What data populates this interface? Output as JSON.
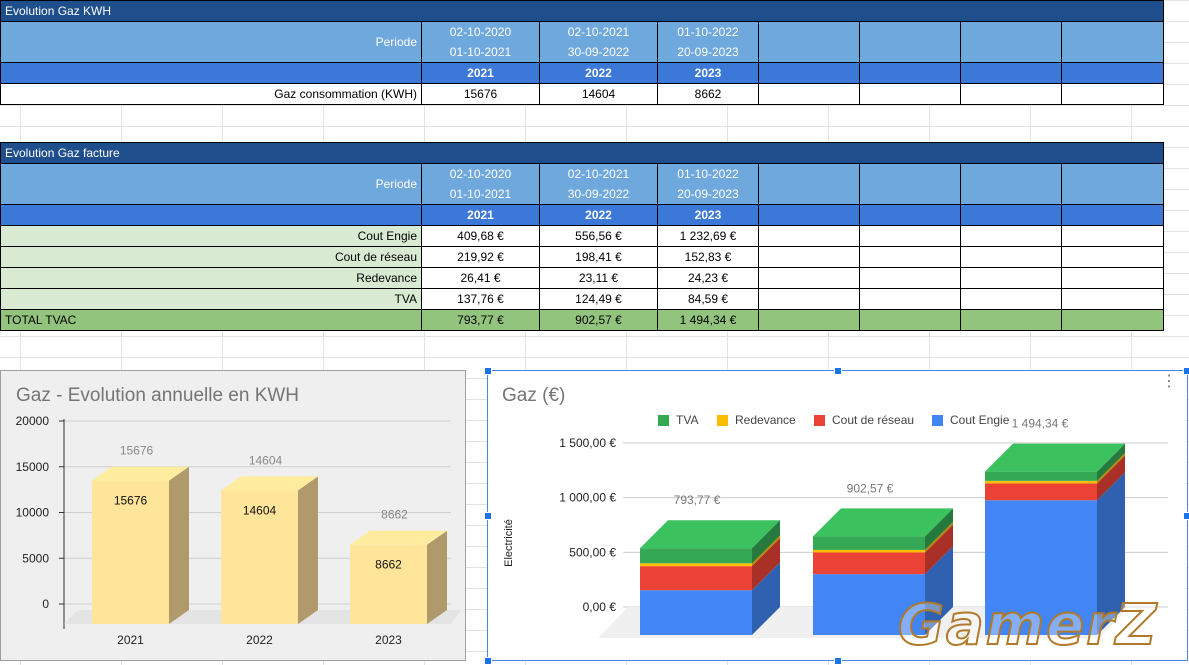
{
  "table1": {
    "title": "Evolution Gaz KWH",
    "period_label": "Periode",
    "periods": [
      {
        "start": "02-10-2020",
        "end": "01-10-2021"
      },
      {
        "start": "02-10-2021",
        "end": "30-09-2022"
      },
      {
        "start": "01-10-2022",
        "end": "20-09-2023"
      }
    ],
    "years": [
      "2021",
      "2022",
      "2023"
    ],
    "row_label": "Gaz consommation (KWH)",
    "values": [
      "15676",
      "14604",
      "8662"
    ]
  },
  "table2": {
    "title": "Evolution Gaz facture",
    "period_label": "Periode",
    "periods": [
      {
        "start": "02-10-2020",
        "end": "01-10-2021"
      },
      {
        "start": "02-10-2021",
        "end": "30-09-2022"
      },
      {
        "start": "01-10-2022",
        "end": "20-09-2023"
      }
    ],
    "years": [
      "2021",
      "2022",
      "2023"
    ],
    "rows": [
      {
        "label": "Cout  Engie",
        "values": [
          "409,68 €",
          "556,56 €",
          "1 232,69 €"
        ]
      },
      {
        "label": "Cout de réseau",
        "values": [
          "219,92 €",
          "198,41 €",
          "152,83 €"
        ]
      },
      {
        "label": "Redevance",
        "values": [
          "26,41 €",
          "23,11 €",
          "24,23 €"
        ]
      },
      {
        "label": "TVA",
        "values": [
          "137,76 €",
          "124,49 €",
          "84,59 €"
        ]
      }
    ],
    "total": {
      "label": "TOTAL TVAC",
      "values": [
        "793,77 €",
        "902,57 €",
        "1 494,34 €"
      ]
    }
  },
  "chart_data": [
    {
      "type": "bar",
      "title": "Gaz - Evolution annuelle en KWH",
      "categories": [
        "2021",
        "2022",
        "2023"
      ],
      "values": [
        15676,
        14604,
        8662
      ],
      "value_labels": [
        "15676",
        "14604",
        "8662"
      ],
      "yticks": [
        "20000",
        "15000",
        "10000",
        "5000",
        "0"
      ],
      "ylim": [
        0,
        20000
      ],
      "color": "#ffe599",
      "three_d": true,
      "grid": true
    },
    {
      "type": "bar",
      "stacked": true,
      "three_d": true,
      "title": "Gaz  (€)",
      "ylabel": "Electricité",
      "categories": [
        "2021",
        "2022",
        "2023"
      ],
      "series": [
        {
          "name": "Cout  Engie",
          "values": [
            409.68,
            556.56,
            1232.69
          ],
          "color": "#4285f4"
        },
        {
          "name": "Cout de réseau",
          "values": [
            219.92,
            198.41,
            152.83
          ],
          "color": "#ea4335"
        },
        {
          "name": "Redevance",
          "values": [
            26.41,
            23.11,
            24.23
          ],
          "color": "#fbbc04"
        },
        {
          "name": "TVA",
          "values": [
            137.76,
            124.49,
            84.59
          ],
          "color": "#34a853"
        }
      ],
      "legend_order": [
        "TVA",
        "Redevance",
        "Cout de réseau",
        "Cout  Engie"
      ],
      "legend_position": "top",
      "totals": [
        "793,77 €",
        "902,57 €",
        "1 494,34 €"
      ],
      "yticks": [
        "1 500,00 €",
        "1 000,00 €",
        "500,00 €",
        "0,00 €"
      ],
      "ylim": [
        0,
        1500
      ],
      "grid": true
    }
  ],
  "watermark": "GamerZ"
}
